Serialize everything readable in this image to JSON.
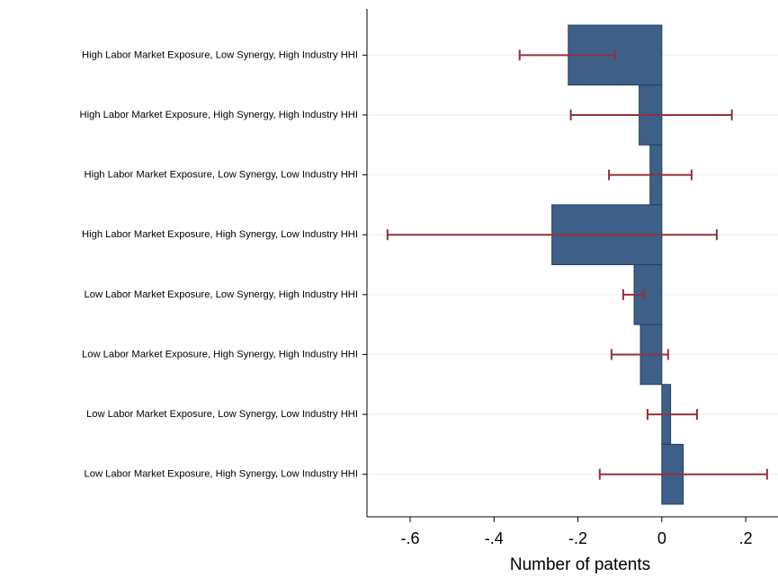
{
  "chart_data": {
    "type": "hbar",
    "x_label": "Number of patents",
    "categories": [
      "High Labor Market Exposure, Low Synergy, High Industry HHI",
      "High Labor Market Exposure, High Synergy, High Industry HHI",
      "High Labor Market Exposure, Low Synergy, Low Industry HHI",
      "High Labor Market Exposure, High Synergy, Low Industry HHI",
      "Low Labor Market Exposure, Low Synergy, High Industry HHI",
      "Low Labor Market Exposure, High Synergy, High Industry HHI",
      "Low Labor Market Exposure, Low Synergy, Low Industry HHI",
      "Low Labor Market Exposure, High Synergy, Low Industry HHI"
    ],
    "values": [
      -0.223,
      -0.054,
      -0.028,
      -0.262,
      -0.066,
      -0.051,
      0.021,
      0.051
    ],
    "lower": [
      -0.339,
      -0.217,
      -0.126,
      -0.654,
      -0.092,
      -0.12,
      -0.034,
      -0.148
    ],
    "upper": [
      -0.111,
      0.167,
      0.071,
      0.131,
      -0.043,
      0.015,
      0.084,
      0.251
    ],
    "color": "#3d5f88",
    "error_color": "#93323a",
    "xlim": [
      -0.703,
      0.277
    ],
    "xticks": [
      {
        "value": -0.6,
        "label": "-.6"
      },
      {
        "value": -0.4,
        "label": "-.4"
      },
      {
        "value": -0.2,
        "label": "-.2"
      },
      0,
      {
        "value": 0.2,
        "label": ".2"
      }
    ],
    "grid": true
  }
}
